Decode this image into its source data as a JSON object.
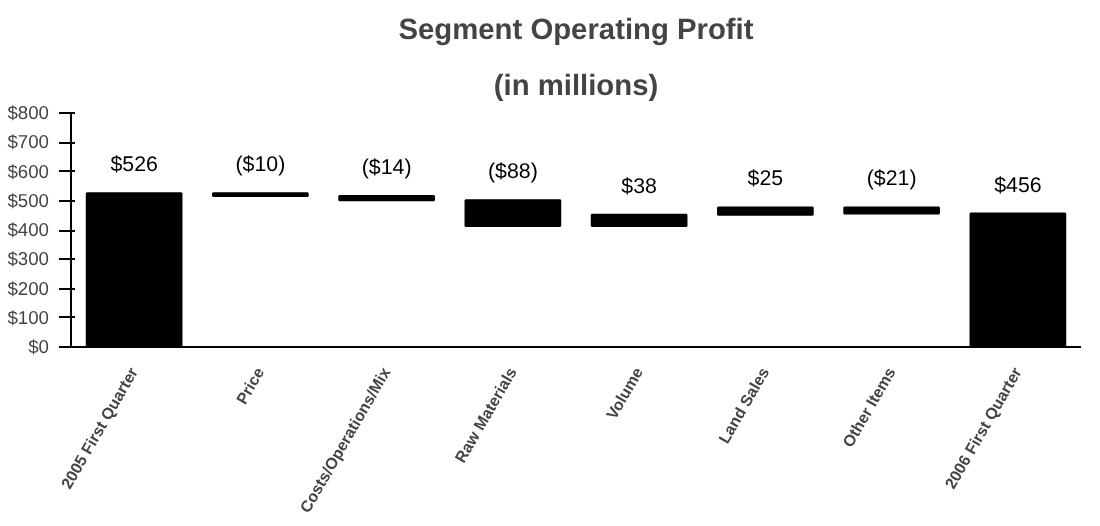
{
  "chart_data": {
    "type": "bar",
    "title": "Segment Operating Profit",
    "subtitle": "(in millions)",
    "categories": [
      "2005 First Quarter",
      "Price",
      "Costs/Operations/Mix",
      "Raw Materials",
      "Volume",
      "Land Sales",
      "Other Items",
      "2006 First Quarter"
    ],
    "values": [
      526,
      -10,
      -14,
      -88,
      38,
      25,
      -21,
      456
    ],
    "base": [
      0,
      526,
      516,
      502,
      414,
      452,
      477,
      0
    ],
    "value_labels": [
      "$526",
      "($10)",
      "($14)",
      "($88)",
      "$38",
      "$25",
      "($21)",
      "$456"
    ],
    "color": "#000000",
    "ylim": [
      0,
      800
    ],
    "yticks": [
      {
        "value": 0,
        "label": "$0"
      },
      {
        "value": 100,
        "label": "$100"
      },
      {
        "value": 200,
        "label": "$200"
      },
      {
        "value": 300,
        "label": "$300"
      },
      {
        "value": 400,
        "label": "$400"
      },
      {
        "value": 500,
        "label": "$500"
      },
      {
        "value": 600,
        "label": "$600"
      },
      {
        "value": 700,
        "label": "$700"
      },
      {
        "value": 800,
        "label": "$800"
      }
    ],
    "grid": false
  }
}
